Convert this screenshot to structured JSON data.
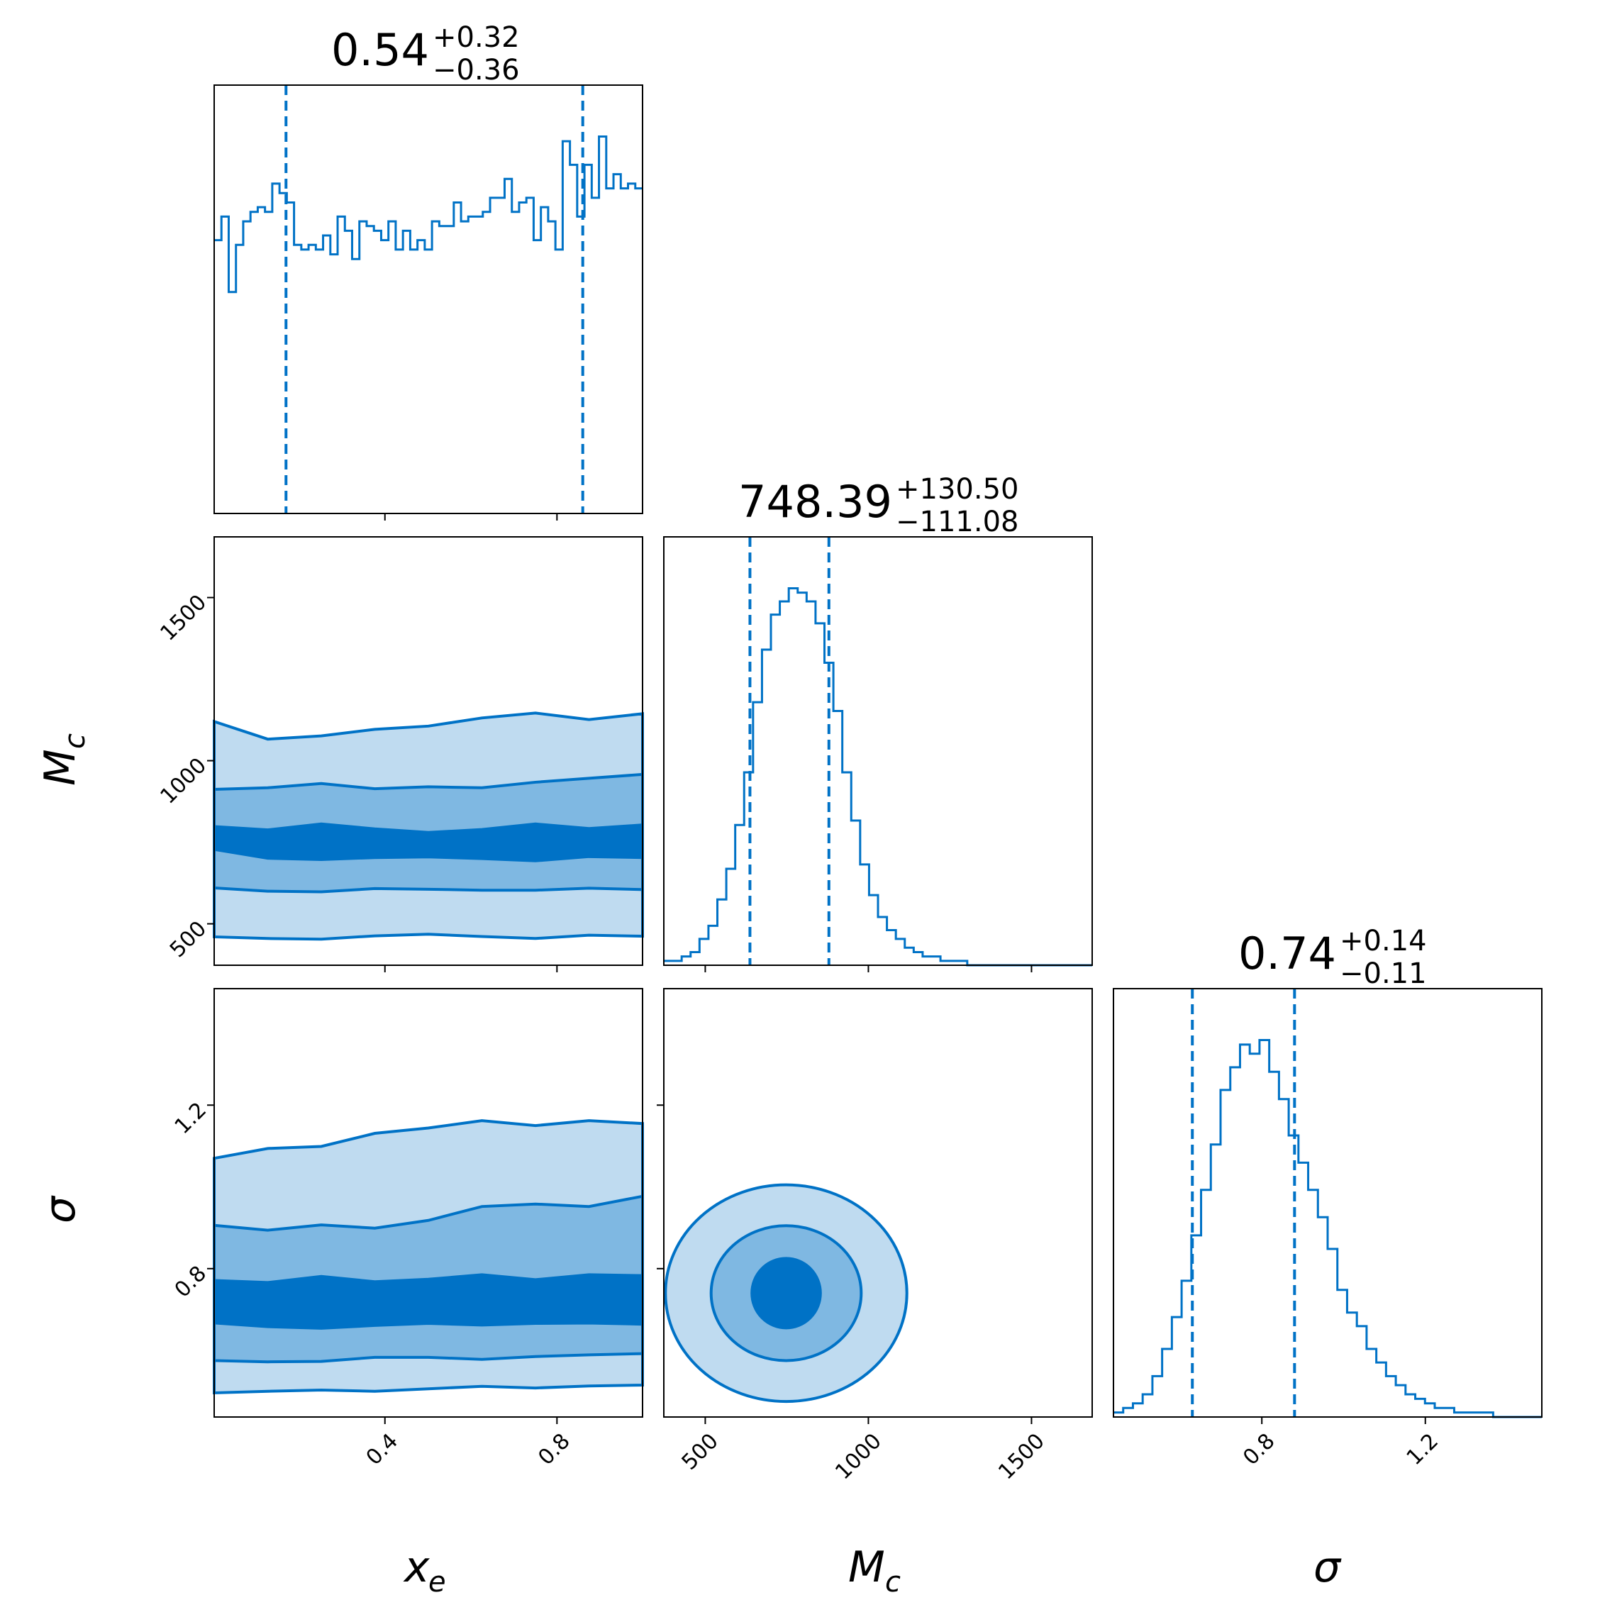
{
  "chart_data": {
    "type": "corner",
    "accent_color": "#0072c6",
    "parameters": [
      {
        "symbol": "x",
        "subscript": "e"
      },
      {
        "symbol": "M",
        "subscript": "c"
      },
      {
        "symbol": "σ",
        "subscript": ""
      }
    ],
    "titles": [
      {
        "median": "0.54",
        "plus": "+0.32",
        "minus": "−0.36"
      },
      {
        "median": "748.39",
        "plus": "+130.50",
        "minus": "−111.08"
      },
      {
        "median": "0.74",
        "plus": "+0.14",
        "minus": "−0.11"
      }
    ],
    "ranges": {
      "x_e": [
        0.003,
        0.999
      ],
      "M_c": [
        373,
        1686
      ],
      "sigma": [
        0.437,
        1.485
      ]
    },
    "ticks": {
      "x_e": [
        "0.4",
        "0.8"
      ],
      "M_c": [
        "500",
        "1000",
        "1500"
      ],
      "sigma": [
        "0.8",
        "1.2"
      ]
    },
    "tick_values": {
      "x_e": [
        0.4,
        0.8
      ],
      "M_c": [
        500,
        1000,
        1500
      ],
      "sigma": [
        0.8,
        1.2
      ]
    },
    "quantile_lines": {
      "x_e": [
        0.17,
        0.86
      ],
      "M_c": [
        637,
        879
      ],
      "sigma": [
        0.63,
        0.88
      ]
    },
    "histograms": {
      "x_e": {
        "range": [
          0.003,
          0.999
        ],
        "counts": [
          58,
          63,
          47,
          57,
          62,
          64,
          65,
          64,
          70,
          68,
          66,
          57,
          56,
          57,
          56,
          59,
          55,
          63,
          60,
          54,
          62,
          61,
          60,
          58,
          62,
          56,
          60,
          56,
          58,
          56,
          62,
          61,
          61,
          66,
          62,
          63,
          63,
          64,
          67,
          67,
          71,
          64,
          66,
          67,
          58,
          65,
          62,
          56,
          79,
          74,
          63,
          74,
          67,
          80,
          69,
          72,
          69,
          70,
          69
        ]
      },
      "M_c": {
        "range": [
          373,
          1686
        ],
        "counts": [
          1,
          1,
          2,
          3,
          6,
          9,
          15,
          22,
          32,
          44,
          60,
          72,
          80,
          83,
          86,
          85,
          83,
          78,
          69,
          58,
          44,
          33,
          23,
          16,
          11,
          8,
          6,
          4,
          3,
          2,
          2,
          1,
          1,
          1,
          0,
          0,
          0,
          0,
          0,
          0,
          0,
          0,
          0,
          0,
          0,
          0,
          0,
          0
        ]
      },
      "sigma": {
        "range": [
          0.437,
          1.485
        ],
        "counts": [
          1,
          2,
          3,
          5,
          9,
          15,
          22,
          30,
          40,
          50,
          60,
          72,
          77,
          82,
          80,
          83,
          76,
          70,
          62,
          56,
          50,
          44,
          37,
          28,
          23,
          20,
          15,
          12,
          9,
          7,
          5,
          4,
          3,
          2,
          2,
          1,
          1,
          1,
          1,
          0,
          0,
          0,
          0,
          0
        ]
      }
    },
    "contours_2d": [
      {
        "pair": [
          "x_e",
          "M_c"
        ],
        "x_range": [
          0.003,
          0.999
        ],
        "y_range": [
          373,
          1686
        ],
        "levels": [
          {
            "lower": [
              728,
              701,
              697,
              703,
              705,
              700,
              693,
              706,
              703
            ],
            "upper": [
              798,
              788,
              806,
              791,
              780,
              789,
              806,
              792,
              803
            ]
          },
          {
            "lower": [
              610,
              600,
              598,
              608,
              606,
              603,
              603,
              609,
              605
            ],
            "upper": [
              912,
              917,
              930,
              914,
              920,
              917,
              934,
              946,
              958
            ]
          },
          {
            "lower": [
              460,
              455,
              453,
              463,
              468,
              461,
              455,
              465,
              462
            ],
            "upper": [
              1120,
              1066,
              1076,
              1096,
              1106,
              1131,
              1146,
              1126,
              1144
            ]
          }
        ]
      },
      {
        "pair": [
          "x_e",
          "sigma"
        ],
        "x_range": [
          0.003,
          0.999
        ],
        "y_range": [
          0.437,
          1.485
        ],
        "levels": [
          {
            "lower": [
              0.667,
              0.658,
              0.654,
              0.661,
              0.666,
              0.662,
              0.666,
              0.667,
              0.664
            ],
            "upper": [
              0.771,
              0.766,
              0.781,
              0.768,
              0.774,
              0.785,
              0.773,
              0.785,
              0.783
            ]
          },
          {
            "lower": [
              0.575,
              0.572,
              0.573,
              0.583,
              0.583,
              0.578,
              0.585,
              0.589,
              0.592
            ],
            "upper": [
              0.906,
              0.894,
              0.907,
              0.899,
              0.918,
              0.952,
              0.958,
              0.952,
              0.977
            ]
          },
          {
            "lower": [
              0.496,
              0.5,
              0.503,
              0.5,
              0.506,
              0.512,
              0.508,
              0.513,
              0.515
            ],
            "upper": [
              1.07,
              1.094,
              1.099,
              1.131,
              1.144,
              1.162,
              1.15,
              1.162,
              1.155
            ]
          }
        ]
      },
      {
        "pair": [
          "M_c",
          "sigma"
        ],
        "x_range": [
          373,
          1686
        ],
        "y_range": [
          0.437,
          1.485
        ],
        "center": [
          748,
          0.74
        ],
        "levels": [
          {
            "rx": 105,
            "ry": 0.085
          },
          {
            "rx": 230,
            "ry": 0.165
          },
          {
            "rx": 370,
            "ry": 0.265
          }
        ]
      }
    ]
  }
}
